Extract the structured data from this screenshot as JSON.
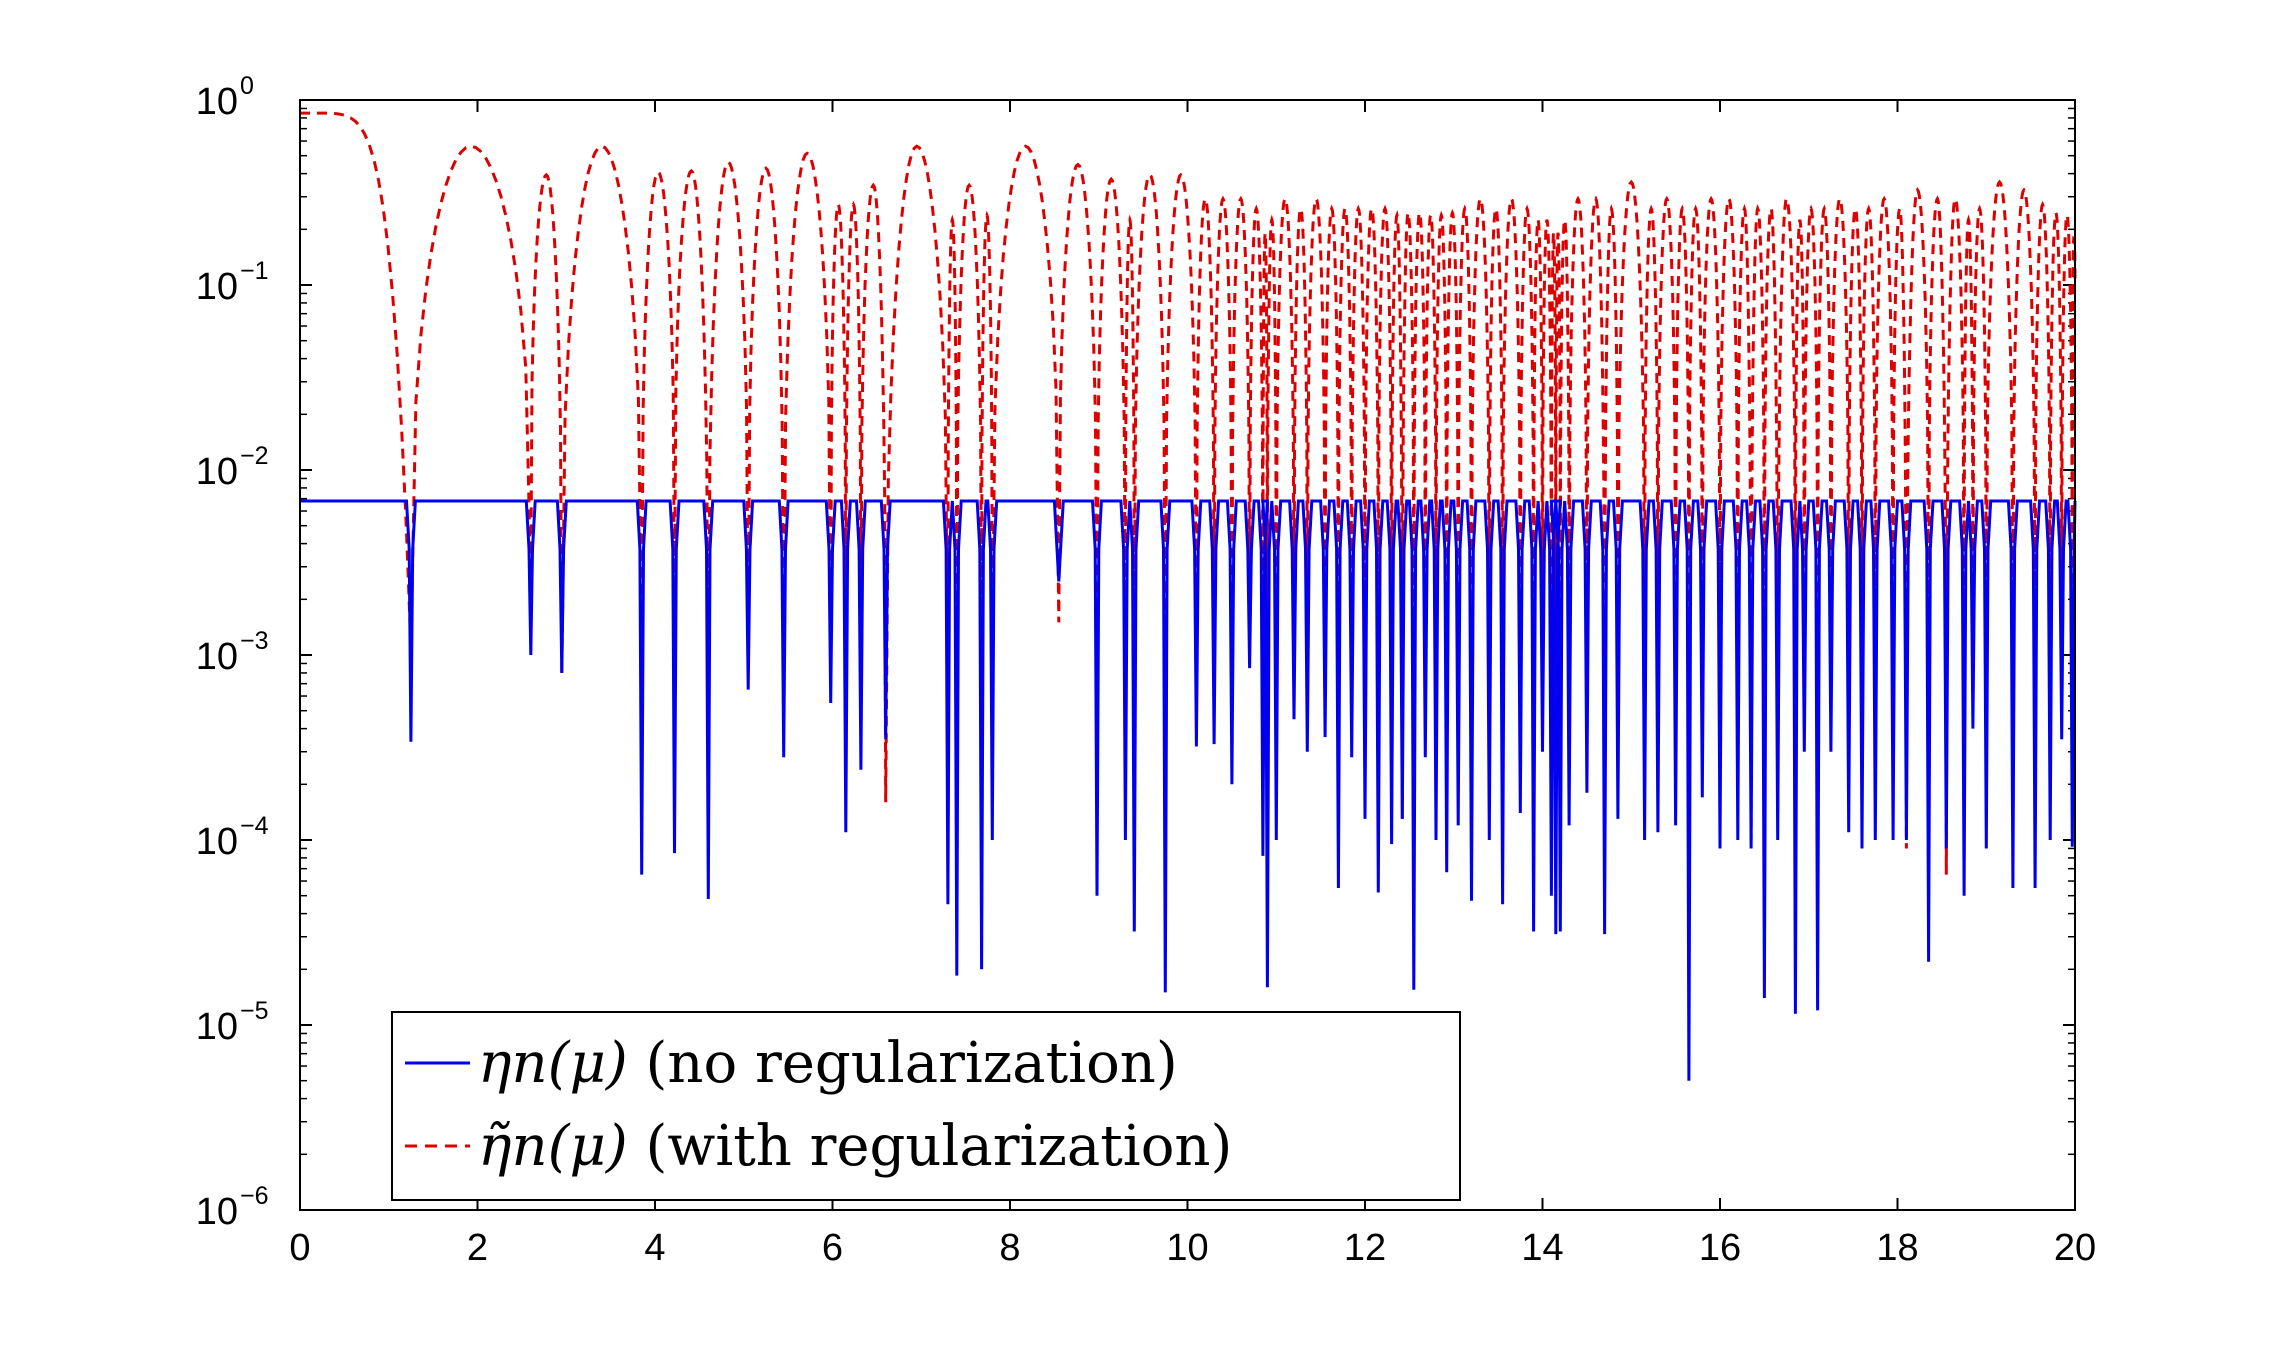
{
  "chart_data": {
    "type": "line",
    "title": "",
    "xlabel": "",
    "ylabel": "",
    "xlim": [
      0,
      20
    ],
    "ylim_log10": [
      -6,
      0
    ],
    "y_scale": "log",
    "grid": false,
    "legend_position": "bottom-left",
    "x_ticks": [
      "0",
      "2",
      "4",
      "6",
      "8",
      "10",
      "12",
      "14",
      "16",
      "18",
      "20"
    ],
    "y_ticks": [
      {
        "base": "10",
        "exp": "0"
      },
      {
        "base": "10",
        "exp": "−1"
      },
      {
        "base": "10",
        "exp": "−2"
      },
      {
        "base": "10",
        "exp": "−3"
      },
      {
        "base": "10",
        "exp": "−4"
      },
      {
        "base": "10",
        "exp": "−5"
      },
      {
        "base": "10",
        "exp": "−6"
      }
    ],
    "series": [
      {
        "name": "eta_n(mu) (no regularization)",
        "legend_math": "ηn(μ)",
        "legend_text": "(no regularization)",
        "color": "#0000ee",
        "style": "solid",
        "baseline_value": 0.0068,
        "dips": [
          [
            1.25,
            0.00034
          ],
          [
            2.6,
            0.001
          ],
          [
            2.95,
            0.0008
          ],
          [
            3.85,
            6.5e-05
          ],
          [
            4.22,
            8.5e-05
          ],
          [
            4.6,
            4.8e-05
          ],
          [
            5.05,
            0.00065
          ],
          [
            5.45,
            0.00028
          ],
          [
            5.98,
            0.00055
          ],
          [
            6.15,
            0.00011
          ],
          [
            6.32,
            0.00024
          ],
          [
            6.6,
            0.00035
          ],
          [
            7.3,
            4.5e-05
          ],
          [
            7.4,
            1.85e-05
          ],
          [
            7.68,
            2e-05
          ],
          [
            7.8,
            0.0001
          ],
          [
            8.55,
            0.0025
          ],
          [
            8.98,
            5e-05
          ],
          [
            9.3,
            0.0001
          ],
          [
            9.4,
            3.2e-05
          ],
          [
            9.75,
            1.5e-05
          ],
          [
            10.1,
            0.00032
          ],
          [
            10.3,
            0.00033
          ],
          [
            10.5,
            0.0002
          ],
          [
            10.7,
            0.00085
          ],
          [
            10.85,
            8.2e-05
          ],
          [
            10.9,
            1.6e-05
          ],
          [
            11.0,
            0.0001
          ],
          [
            11.2,
            0.00045
          ],
          [
            11.35,
            0.0003
          ],
          [
            11.55,
            0.00036
          ],
          [
            11.7,
            5.5e-05
          ],
          [
            11.85,
            0.00028
          ],
          [
            12.0,
            0.00013
          ],
          [
            12.15,
            5.2e-05
          ],
          [
            12.3,
            9.5e-05
          ],
          [
            12.42,
            0.00013
          ],
          [
            12.55,
            1.55e-05
          ],
          [
            12.68,
            0.00028
          ],
          [
            12.8,
            0.0001
          ],
          [
            12.92,
            6.7e-05
          ],
          [
            13.05,
            0.00012
          ],
          [
            13.2,
            4.7e-05
          ],
          [
            13.4,
            0.0001
          ],
          [
            13.55,
            4.5e-05
          ],
          [
            13.75,
            0.00014
          ],
          [
            13.9,
            3.2e-05
          ],
          [
            14.0,
            0.0003
          ],
          [
            14.1,
            5e-05
          ],
          [
            14.15,
            3.1e-05
          ],
          [
            14.2,
            3.2e-05
          ],
          [
            14.3,
            0.00012
          ],
          [
            14.5,
            0.00018
          ],
          [
            14.7,
            3.1e-05
          ],
          [
            14.85,
            0.00013
          ],
          [
            15.15,
            0.0001
          ],
          [
            15.3,
            0.00011
          ],
          [
            15.5,
            0.00012
          ],
          [
            15.65,
            5e-06
          ],
          [
            15.8,
            0.00017
          ],
          [
            16.0,
            9e-05
          ],
          [
            16.2,
            0.0001
          ],
          [
            16.35,
            9e-05
          ],
          [
            16.5,
            1.4e-05
          ],
          [
            16.65,
            0.0001
          ],
          [
            16.85,
            1.15e-05
          ],
          [
            16.95,
            0.0003
          ],
          [
            17.1,
            1.2e-05
          ],
          [
            17.25,
            0.0003
          ],
          [
            17.45,
            0.00011
          ],
          [
            17.6,
            9e-05
          ],
          [
            17.75,
            0.0001
          ],
          [
            17.95,
            0.0001
          ],
          [
            18.1,
            0.0001
          ],
          [
            18.35,
            2.2e-05
          ],
          [
            18.55,
            9e-05
          ],
          [
            18.75,
            5e-05
          ],
          [
            18.85,
            0.0004
          ],
          [
            19.0,
            9e-05
          ],
          [
            19.3,
            5.5e-05
          ],
          [
            19.55,
            5.5e-05
          ],
          [
            19.72,
            0.0001
          ],
          [
            19.85,
            0.00035
          ],
          [
            19.97,
            9.2e-05
          ]
        ]
      },
      {
        "name": "tilde eta_n(mu) (with regularization)",
        "legend_math": "η̃n(μ)",
        "legend_text": "(with regularization)",
        "color": "#dd0000",
        "style": "dashed",
        "zeros": [
          [
            1.25,
            0.0011
          ],
          [
            2.6,
            0.0025
          ],
          [
            2.95,
            0.0008
          ],
          [
            3.85,
            0.0012
          ],
          [
            4.22,
            0.002
          ],
          [
            4.6,
            0.00035
          ],
          [
            5.05,
            0.0012
          ],
          [
            5.45,
            0.0008
          ],
          [
            5.98,
            0.0012
          ],
          [
            6.15,
            0.001
          ],
          [
            6.32,
            0.001
          ],
          [
            6.6,
            0.00016
          ],
          [
            7.3,
            0.0008
          ],
          [
            7.4,
            0.001
          ],
          [
            7.68,
            0.001
          ],
          [
            7.8,
            0.001
          ],
          [
            8.55,
            0.0015
          ],
          [
            8.98,
            0.001
          ],
          [
            9.3,
            0.001
          ],
          [
            9.4,
            0.001
          ],
          [
            9.75,
            0.001
          ],
          [
            10.1,
            0.001
          ],
          [
            10.3,
            0.001
          ],
          [
            10.5,
            0.001
          ],
          [
            10.7,
            0.001
          ],
          [
            10.85,
            0.0012
          ],
          [
            10.9,
            0.0008
          ],
          [
            11.0,
            0.001
          ],
          [
            11.2,
            0.001
          ],
          [
            11.35,
            0.001
          ],
          [
            11.55,
            0.001
          ],
          [
            11.7,
            0.001
          ],
          [
            11.85,
            0.001
          ],
          [
            12.0,
            0.001
          ],
          [
            12.15,
            0.001
          ],
          [
            12.3,
            0.0008
          ],
          [
            12.42,
            0.00013
          ],
          [
            12.55,
            0.001
          ],
          [
            12.68,
            0.001
          ],
          [
            12.8,
            0.001
          ],
          [
            12.92,
            0.001
          ],
          [
            13.05,
            0.001
          ],
          [
            13.2,
            0.001
          ],
          [
            13.4,
            0.001
          ],
          [
            13.55,
            0.001
          ],
          [
            13.75,
            0.001
          ],
          [
            13.9,
            0.001
          ],
          [
            14.0,
            0.001
          ],
          [
            14.1,
            0.001
          ],
          [
            14.15,
            0.0008
          ],
          [
            14.2,
            0.001
          ],
          [
            14.3,
            0.001
          ],
          [
            14.5,
            0.001
          ],
          [
            14.7,
            0.00023
          ],
          [
            14.85,
            0.001
          ],
          [
            15.15,
            0.001
          ],
          [
            15.3,
            0.001
          ],
          [
            15.5,
            0.001
          ],
          [
            15.65,
            0.001
          ],
          [
            15.8,
            0.001
          ],
          [
            16.0,
            0.001
          ],
          [
            16.2,
            0.001
          ],
          [
            16.35,
            0.0001
          ],
          [
            16.5,
            0.001
          ],
          [
            16.65,
            0.00014
          ],
          [
            16.85,
            0.001
          ],
          [
            16.95,
            0.001
          ],
          [
            17.1,
            0.001
          ],
          [
            17.25,
            0.001
          ],
          [
            17.45,
            0.001
          ],
          [
            17.6,
            0.001
          ],
          [
            17.75,
            0.001
          ],
          [
            17.95,
            0.001
          ],
          [
            18.1,
            9e-05
          ],
          [
            18.35,
            0.001
          ],
          [
            18.55,
            6.5e-05
          ],
          [
            18.75,
            0.001
          ],
          [
            18.85,
            0.001
          ],
          [
            19.0,
            0.001
          ],
          [
            19.3,
            0.001
          ],
          [
            19.55,
            0.001
          ],
          [
            19.72,
            0.001
          ],
          [
            19.85,
            0.001
          ],
          [
            19.97,
            0.001
          ]
        ],
        "start_value": 0.85,
        "peak_value": 0.45
      }
    ]
  }
}
